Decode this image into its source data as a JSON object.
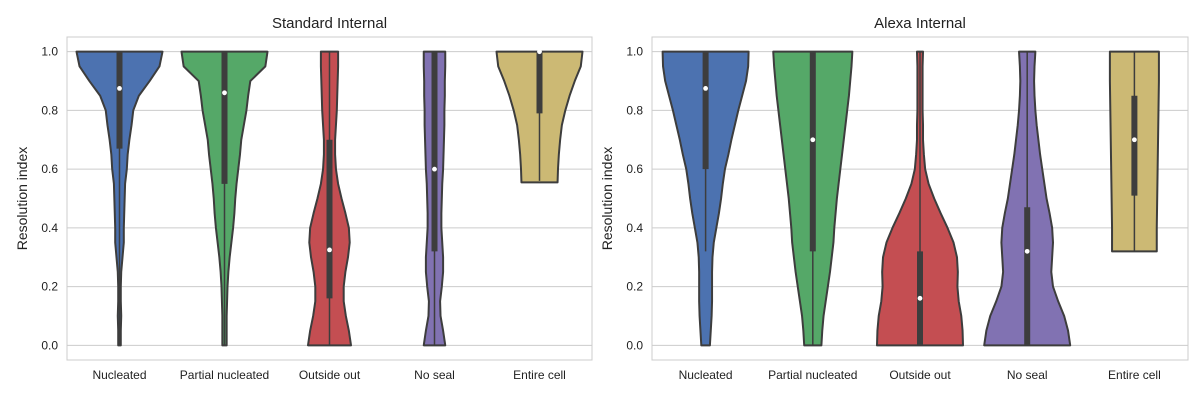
{
  "chart_data": [
    {
      "type": "violin",
      "title": "Standard Internal",
      "ylabel": "Resolution index",
      "xlabel": "",
      "ylim": [
        -0.05,
        1.05
      ],
      "yticks": [
        0.0,
        0.2,
        0.4,
        0.6,
        0.8,
        1.0
      ],
      "ytick_labels": [
        "0.0",
        "0.2",
        "0.4",
        "0.6",
        "0.8",
        "1.0"
      ],
      "grid": "horizontal",
      "categories": [
        "Nucleated",
        "Partial nucleated",
        "Outside out",
        "No seal",
        "Entire cell"
      ],
      "series": [
        {
          "color": "#4c72b0",
          "median": 0.875,
          "q1": 0.67,
          "q3": 1.0,
          "min": 0.0,
          "max": 1.0,
          "density": [
            [
              0.0,
              0.03
            ],
            [
              0.05,
              0.03
            ],
            [
              0.1,
              0.04
            ],
            [
              0.15,
              0.03
            ],
            [
              0.2,
              0.03
            ],
            [
              0.25,
              0.04
            ],
            [
              0.3,
              0.07
            ],
            [
              0.35,
              0.1
            ],
            [
              0.4,
              0.1
            ],
            [
              0.45,
              0.11
            ],
            [
              0.5,
              0.12
            ],
            [
              0.55,
              0.13
            ],
            [
              0.6,
              0.17
            ],
            [
              0.65,
              0.19
            ],
            [
              0.7,
              0.23
            ],
            [
              0.75,
              0.28
            ],
            [
              0.8,
              0.32
            ],
            [
              0.85,
              0.45
            ],
            [
              0.9,
              0.7
            ],
            [
              0.95,
              0.93
            ],
            [
              1.0,
              1.0
            ]
          ]
        },
        {
          "color": "#55a868",
          "median": 0.86,
          "q1": 0.55,
          "q3": 1.0,
          "min": 0.0,
          "max": 1.0,
          "density": [
            [
              0.0,
              0.05
            ],
            [
              0.05,
              0.05
            ],
            [
              0.1,
              0.05
            ],
            [
              0.15,
              0.06
            ],
            [
              0.2,
              0.07
            ],
            [
              0.25,
              0.09
            ],
            [
              0.3,
              0.12
            ],
            [
              0.35,
              0.16
            ],
            [
              0.4,
              0.2
            ],
            [
              0.45,
              0.23
            ],
            [
              0.5,
              0.25
            ],
            [
              0.55,
              0.28
            ],
            [
              0.6,
              0.32
            ],
            [
              0.65,
              0.36
            ],
            [
              0.7,
              0.39
            ],
            [
              0.75,
              0.45
            ],
            [
              0.8,
              0.51
            ],
            [
              0.85,
              0.55
            ],
            [
              0.9,
              0.6
            ],
            [
              0.95,
              0.95
            ],
            [
              1.0,
              1.0
            ]
          ]
        },
        {
          "color": "#c44e52",
          "median": 0.325,
          "q1": 0.16,
          "q3": 0.7,
          "min": 0.0,
          "max": 1.0,
          "density": [
            [
              0.0,
              0.5
            ],
            [
              0.05,
              0.45
            ],
            [
              0.1,
              0.38
            ],
            [
              0.15,
              0.33
            ],
            [
              0.2,
              0.33
            ],
            [
              0.25,
              0.37
            ],
            [
              0.3,
              0.43
            ],
            [
              0.35,
              0.47
            ],
            [
              0.4,
              0.45
            ],
            [
              0.45,
              0.37
            ],
            [
              0.5,
              0.28
            ],
            [
              0.55,
              0.2
            ],
            [
              0.6,
              0.15
            ],
            [
              0.65,
              0.13
            ],
            [
              0.7,
              0.13
            ],
            [
              0.75,
              0.15
            ],
            [
              0.8,
              0.17
            ],
            [
              0.85,
              0.18
            ],
            [
              0.9,
              0.19
            ],
            [
              0.95,
              0.2
            ],
            [
              1.0,
              0.2
            ]
          ]
        },
        {
          "color": "#8172b2",
          "median": 0.6,
          "q1": 0.32,
          "q3": 1.0,
          "min": 0.0,
          "max": 1.0,
          "density": [
            [
              0.0,
              0.25
            ],
            [
              0.05,
              0.2
            ],
            [
              0.1,
              0.14
            ],
            [
              0.15,
              0.13
            ],
            [
              0.2,
              0.17
            ],
            [
              0.25,
              0.2
            ],
            [
              0.3,
              0.2
            ],
            [
              0.35,
              0.18
            ],
            [
              0.4,
              0.16
            ],
            [
              0.45,
              0.16
            ],
            [
              0.5,
              0.17
            ],
            [
              0.55,
              0.18
            ],
            [
              0.6,
              0.2
            ],
            [
              0.65,
              0.21
            ],
            [
              0.7,
              0.22
            ],
            [
              0.75,
              0.23
            ],
            [
              0.8,
              0.23
            ],
            [
              0.85,
              0.24
            ],
            [
              0.9,
              0.24
            ],
            [
              0.95,
              0.25
            ],
            [
              1.0,
              0.25
            ]
          ]
        },
        {
          "color": "#ccb974",
          "median": 1.0,
          "q1": 0.79,
          "q3": 1.0,
          "min": 0.56,
          "max": 1.0,
          "density": [
            [
              0.555,
              0.42
            ],
            [
              0.6,
              0.43
            ],
            [
              0.65,
              0.45
            ],
            [
              0.7,
              0.48
            ],
            [
              0.75,
              0.52
            ],
            [
              0.8,
              0.6
            ],
            [
              0.85,
              0.7
            ],
            [
              0.9,
              0.82
            ],
            [
              0.95,
              0.96
            ],
            [
              1.0,
              1.0
            ]
          ]
        }
      ]
    },
    {
      "type": "violin",
      "title": "Alexa Internal",
      "ylabel": "Resolution index",
      "xlabel": "",
      "ylim": [
        -0.05,
        1.05
      ],
      "yticks": [
        0.0,
        0.2,
        0.4,
        0.6,
        0.8,
        1.0
      ],
      "ytick_labels": [
        "0.0",
        "0.2",
        "0.4",
        "0.6",
        "0.8",
        "1.0"
      ],
      "grid": "horizontal",
      "categories": [
        "Nucleated",
        "Partial nucleated",
        "Outside out",
        "No seal",
        "Entire cell"
      ],
      "series": [
        {
          "color": "#4c72b0",
          "median": 0.875,
          "q1": 0.6,
          "q3": 1.0,
          "min": 0.32,
          "max": 1.0,
          "density": [
            [
              0.0,
              0.1
            ],
            [
              0.05,
              0.12
            ],
            [
              0.1,
              0.14
            ],
            [
              0.15,
              0.15
            ],
            [
              0.2,
              0.15
            ],
            [
              0.25,
              0.15
            ],
            [
              0.3,
              0.16
            ],
            [
              0.35,
              0.19
            ],
            [
              0.4,
              0.25
            ],
            [
              0.45,
              0.31
            ],
            [
              0.5,
              0.36
            ],
            [
              0.55,
              0.4
            ],
            [
              0.6,
              0.45
            ],
            [
              0.65,
              0.53
            ],
            [
              0.7,
              0.6
            ],
            [
              0.75,
              0.68
            ],
            [
              0.8,
              0.76
            ],
            [
              0.85,
              0.85
            ],
            [
              0.9,
              0.94
            ],
            [
              0.95,
              0.99
            ],
            [
              1.0,
              1.0
            ]
          ]
        },
        {
          "color": "#55a868",
          "median": 0.7,
          "q1": 0.32,
          "q3": 1.0,
          "min": 0.0,
          "max": 1.0,
          "density": [
            [
              0.0,
              0.2
            ],
            [
              0.05,
              0.22
            ],
            [
              0.1,
              0.25
            ],
            [
              0.15,
              0.3
            ],
            [
              0.2,
              0.35
            ],
            [
              0.25,
              0.4
            ],
            [
              0.3,
              0.44
            ],
            [
              0.35,
              0.48
            ],
            [
              0.4,
              0.5
            ],
            [
              0.45,
              0.53
            ],
            [
              0.5,
              0.56
            ],
            [
              0.55,
              0.6
            ],
            [
              0.6,
              0.64
            ],
            [
              0.65,
              0.68
            ],
            [
              0.7,
              0.72
            ],
            [
              0.75,
              0.76
            ],
            [
              0.8,
              0.8
            ],
            [
              0.85,
              0.84
            ],
            [
              0.9,
              0.87
            ],
            [
              0.95,
              0.9
            ],
            [
              1.0,
              0.92
            ]
          ]
        },
        {
          "color": "#c44e52",
          "median": 0.16,
          "q1": 0.0,
          "q3": 0.32,
          "min": 0.0,
          "max": 1.0,
          "density": [
            [
              0.0,
              1.0
            ],
            [
              0.05,
              0.99
            ],
            [
              0.1,
              0.96
            ],
            [
              0.15,
              0.9
            ],
            [
              0.2,
              0.87
            ],
            [
              0.25,
              0.88
            ],
            [
              0.3,
              0.86
            ],
            [
              0.35,
              0.78
            ],
            [
              0.4,
              0.64
            ],
            [
              0.45,
              0.48
            ],
            [
              0.5,
              0.33
            ],
            [
              0.55,
              0.2
            ],
            [
              0.6,
              0.12
            ],
            [
              0.65,
              0.09
            ],
            [
              0.7,
              0.07
            ],
            [
              0.75,
              0.07
            ],
            [
              0.8,
              0.06
            ],
            [
              0.85,
              0.06
            ],
            [
              0.9,
              0.06
            ],
            [
              0.95,
              0.06
            ],
            [
              1.0,
              0.07
            ]
          ]
        },
        {
          "color": "#8172b2",
          "median": 0.32,
          "q1": 0.0,
          "q3": 0.47,
          "min": 0.0,
          "max": 1.0,
          "density": [
            [
              0.0,
              1.0
            ],
            [
              0.05,
              0.95
            ],
            [
              0.1,
              0.86
            ],
            [
              0.15,
              0.72
            ],
            [
              0.2,
              0.6
            ],
            [
              0.25,
              0.56
            ],
            [
              0.3,
              0.58
            ],
            [
              0.35,
              0.6
            ],
            [
              0.4,
              0.58
            ],
            [
              0.45,
              0.52
            ],
            [
              0.5,
              0.45
            ],
            [
              0.55,
              0.4
            ],
            [
              0.6,
              0.35
            ],
            [
              0.65,
              0.3
            ],
            [
              0.7,
              0.26
            ],
            [
              0.75,
              0.22
            ],
            [
              0.8,
              0.19
            ],
            [
              0.85,
              0.17
            ],
            [
              0.9,
              0.16
            ],
            [
              0.95,
              0.17
            ],
            [
              1.0,
              0.19
            ]
          ]
        },
        {
          "color": "#ccb974",
          "median": 0.7,
          "q1": 0.51,
          "q3": 0.85,
          "min": 0.32,
          "max": 1.0,
          "density": [
            [
              0.32,
              0.52
            ],
            [
              0.4,
              0.52
            ],
            [
              0.5,
              0.53
            ],
            [
              0.6,
              0.54
            ],
            [
              0.7,
              0.55
            ],
            [
              0.8,
              0.56
            ],
            [
              0.9,
              0.57
            ],
            [
              1.0,
              0.57
            ]
          ]
        }
      ]
    }
  ]
}
